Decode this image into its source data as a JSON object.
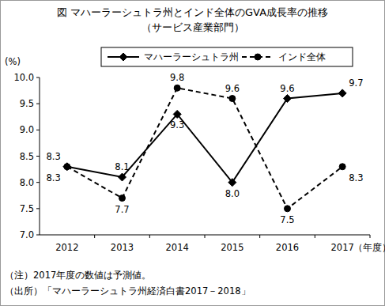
{
  "chart_data": {
    "type": "line",
    "title": "図 マハーラーシュトラ州とインド全体のGVA成長率の推移",
    "subtitle": "（サービス産業部門）",
    "y_label": "(%)",
    "x_label": "（年度）",
    "categories": [
      "2012",
      "2013",
      "2014",
      "2015",
      "2016",
      "2017"
    ],
    "series": [
      {
        "name": "マハーラーシュトラ州",
        "color": "#000000",
        "marker": "diamond",
        "line_style": "solid",
        "values": [
          8.3,
          8.1,
          9.3,
          8.0,
          9.6,
          9.7
        ],
        "value_labels": [
          "8.3",
          "8.1",
          "9.3",
          "8.0",
          "9.6",
          "9.7"
        ]
      },
      {
        "name": "インド全体",
        "color": "#000000",
        "marker": "circle",
        "line_style": "dashed",
        "values": [
          8.3,
          7.7,
          9.8,
          9.6,
          7.5,
          8.3
        ]
      }
    ],
    "ylim": [
      7,
      10
    ],
    "yticks": [
      {
        "value": 7,
        "label": "7.0"
      },
      7.5,
      {
        "value": 8,
        "label": "8.0"
      },
      8.5,
      {
        "value": 9,
        "label": "9.0"
      },
      9.5,
      {
        "value": 10,
        "label": "10.0"
      }
    ],
    "grid": false,
    "legend": "top",
    "data_labels": true,
    "notes": [
      "（注）2017年度の数値は予測値。",
      "（出所）「マハーラーシュトラ州経済白書2017－2018」"
    ]
  }
}
